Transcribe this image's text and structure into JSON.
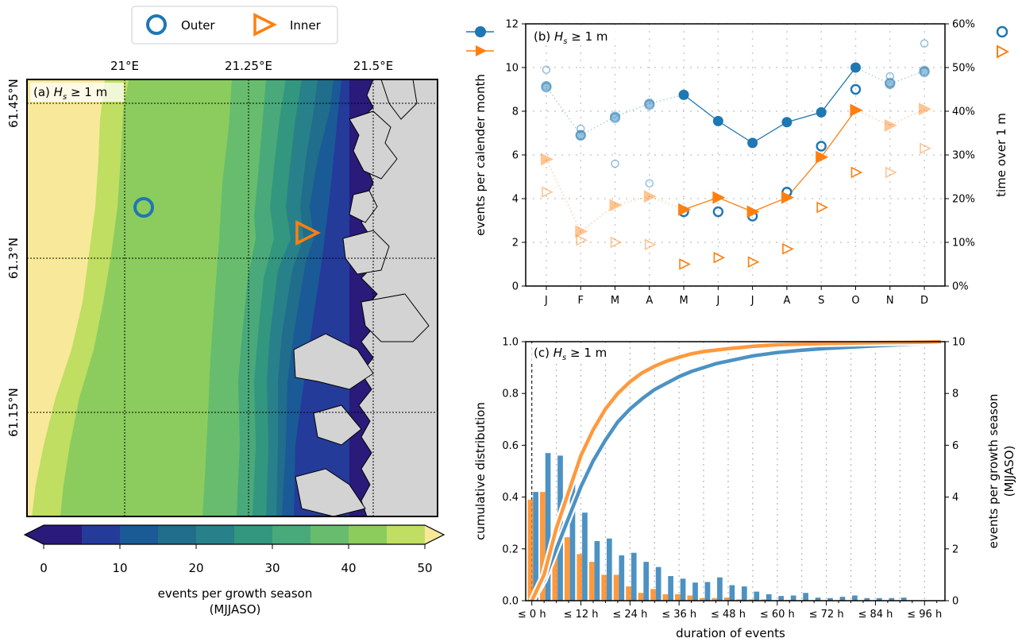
{
  "legend": {
    "outer_label": "Outer",
    "inner_label": "Inner"
  },
  "colors": {
    "outer": "#1f77b4",
    "inner": "#ff7f0e"
  },
  "map": {
    "panel_label": "(a) ",
    "panel_var": "H",
    "panel_sub": "s",
    "panel_rest": " ≥ 1 m",
    "lon_ticks": [
      "21°E",
      "21.25°E",
      "21.5°E"
    ],
    "lat_ticks": [
      "61.45°N",
      "61.3°N",
      "61.15°N"
    ],
    "colorbar": {
      "ticks": [
        "0",
        "10",
        "20",
        "30",
        "40",
        "50"
      ],
      "label_line1": "events per growth season",
      "label_line2": "(MJJASO)",
      "colors": [
        "#2a1a7a",
        "#243b9a",
        "#1a5a96",
        "#206d8c",
        "#28818a",
        "#33967f",
        "#4aa97a",
        "#67bd6d",
        "#8ccc5e",
        "#bfde62",
        "#f8e99a"
      ]
    }
  },
  "chart_data": [
    {
      "type": "line",
      "panel_label": "(b) ",
      "title_var": "H",
      "title_sub": "s",
      "title_rest": " ≥ 1 m",
      "categories": [
        "J",
        "F",
        "M",
        "A",
        "M",
        "J",
        "J",
        "A",
        "S",
        "O",
        "N",
        "D"
      ],
      "ylabel": "events per calender month",
      "ylim": [
        0,
        12
      ],
      "yticks": [
        "0",
        "2",
        "4",
        "6",
        "8",
        "10",
        "12"
      ],
      "y2label": "time over 1 m",
      "y2lim": [
        0,
        60
      ],
      "y2ticks": [
        "0%",
        "10%",
        "20%",
        "30%",
        "40%",
        "50%",
        "60%"
      ],
      "series": [
        {
          "marker": "outer-events",
          "values": [
            9.15,
            6.9,
            7.75,
            8.35,
            8.75,
            7.55,
            6.55,
            7.5,
            7.95,
            10.0,
            9.25,
            9.85
          ]
        },
        {
          "marker": "inner-events",
          "values": [
            5.8,
            2.5,
            3.7,
            4.1,
            3.5,
            4.05,
            3.4,
            4.05,
            5.9,
            8.05,
            7.35,
            8.1
          ]
        },
        {
          "marker": "outer-time-pct",
          "values": [
            45.5,
            34.5,
            38.5,
            41.5,
            17.0,
            17.0,
            16.0,
            21.5,
            32.0,
            45.0,
            46.5,
            49.0
          ]
        },
        {
          "marker": "inner-time-pct",
          "values": [
            21.5,
            10.5,
            10.0,
            9.5,
            5.0,
            6.5,
            5.5,
            8.5,
            18.0,
            26.0,
            26.0,
            31.5
          ]
        },
        {
          "marker": "outer-time-alt",
          "values": [
            49.5,
            36.0,
            28.0,
            23.5,
            null,
            null,
            null,
            null,
            null,
            null,
            48.0,
            55.5
          ]
        }
      ]
    },
    {
      "type": "bar",
      "panel_label": "(c) ",
      "title_var": "H",
      "title_sub": "s",
      "title_rest": " ≥ 1 m",
      "xlabel": "duration of events",
      "xticks": [
        "≤ 0 h",
        "≤ 12 h",
        "≤ 24 h",
        "≤ 36 h",
        "≤ 48 h",
        "≤ 60 h",
        "≤ 72 h",
        "≤ 84 h",
        "≤ 96 h"
      ],
      "ylabel": "cumulative distribution",
      "ylim": [
        0,
        1
      ],
      "yticks": [
        "0.0",
        "0.2",
        "0.4",
        "0.6",
        "0.8",
        "1.0"
      ],
      "y2label": "events per growth season",
      "y2label_line2": "(MJJASO)",
      "y2lim": [
        0,
        10
      ],
      "y2ticks": [
        "0",
        "2",
        "4",
        "6",
        "8",
        "10"
      ],
      "bar_width_h": 3,
      "bars_outer": [
        4.2,
        5.7,
        5.6,
        4.7,
        3.4,
        2.3,
        2.4,
        1.75,
        1.85,
        1.5,
        1.3,
        0.95,
        0.85,
        0.7,
        0.72,
        0.9,
        0.6,
        0.55,
        0.35,
        0.25,
        0.18,
        0.2,
        0.3,
        0.12,
        0.1,
        0.15,
        0.2,
        0.1,
        0.1,
        0.1,
        0.12
      ],
      "bars_inner": [
        3.9,
        4.2,
        2.5,
        2.45,
        1.8,
        1.5,
        1.0,
        1.0,
        0.55,
        0.3,
        0.45,
        0.25,
        0.25,
        0.2,
        0.1,
        0.1,
        0.12,
        0.05,
        0.05,
        0.05,
        0.02,
        0.03,
        0.02,
        0.02,
        0.01,
        0.01,
        0.01,
        0.0,
        0.0,
        0.0,
        0.0
      ],
      "cdf_outer": [
        [
          0,
          0.0
        ],
        [
          3,
          0.08
        ],
        [
          6,
          0.2
        ],
        [
          9,
          0.32
        ],
        [
          12,
          0.44
        ],
        [
          15,
          0.54
        ],
        [
          18,
          0.62
        ],
        [
          21,
          0.69
        ],
        [
          24,
          0.74
        ],
        [
          27,
          0.78
        ],
        [
          30,
          0.815
        ],
        [
          33,
          0.84
        ],
        [
          36,
          0.865
        ],
        [
          39,
          0.885
        ],
        [
          42,
          0.9
        ],
        [
          45,
          0.915
        ],
        [
          48,
          0.925
        ],
        [
          54,
          0.945
        ],
        [
          60,
          0.958
        ],
        [
          66,
          0.967
        ],
        [
          72,
          0.974
        ],
        [
          78,
          0.979
        ],
        [
          84,
          0.984
        ],
        [
          90,
          0.988
        ],
        [
          96,
          0.992
        ],
        [
          100,
          0.995
        ]
      ],
      "cdf_inner": [
        [
          0,
          0.0
        ],
        [
          3,
          0.1
        ],
        [
          6,
          0.28
        ],
        [
          9,
          0.42
        ],
        [
          12,
          0.56
        ],
        [
          15,
          0.66
        ],
        [
          18,
          0.74
        ],
        [
          21,
          0.8
        ],
        [
          24,
          0.845
        ],
        [
          27,
          0.88
        ],
        [
          30,
          0.905
        ],
        [
          33,
          0.925
        ],
        [
          36,
          0.94
        ],
        [
          39,
          0.953
        ],
        [
          42,
          0.962
        ],
        [
          48,
          0.973
        ],
        [
          54,
          0.982
        ],
        [
          60,
          0.988
        ],
        [
          72,
          0.993
        ],
        [
          84,
          0.996
        ],
        [
          96,
          0.998
        ],
        [
          100,
          1.0
        ]
      ]
    }
  ]
}
